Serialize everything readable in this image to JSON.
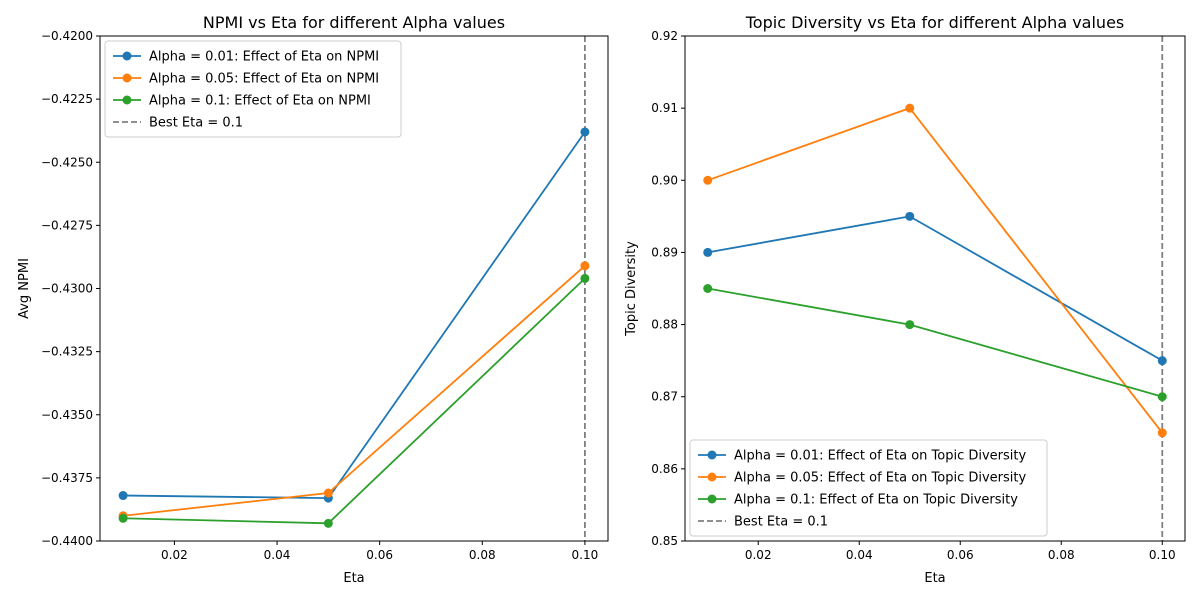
{
  "chart_data": [
    {
      "type": "line",
      "title": "NPMI vs Eta for different Alpha values",
      "xlabel": "Eta",
      "ylabel": "Avg NPMI",
      "x": [
        0.01,
        0.05,
        0.1
      ],
      "xlim": [
        0.0055,
        0.1045
      ],
      "ylim": [
        -0.44,
        -0.42
      ],
      "xticks": [
        "0.02",
        "0.04",
        "0.06",
        "0.08",
        "0.10"
      ],
      "xtick_values": [
        0.02,
        0.04,
        0.06,
        0.08,
        0.1
      ],
      "yticks": [
        "−0.4400",
        "−0.4375",
        "−0.4350",
        "−0.4325",
        "−0.4300",
        "−0.4275",
        "−0.4250",
        "−0.4225",
        "−0.4200"
      ],
      "ytick_values": [
        -0.44,
        -0.4375,
        -0.435,
        -0.4325,
        -0.43,
        -0.4275,
        -0.425,
        -0.4225,
        -0.42
      ],
      "series": [
        {
          "name": "Alpha = 0.01: Effect of Eta on NPMI",
          "color": "#1f77b4",
          "values": [
            -0.4382,
            -0.4383,
            -0.4238
          ]
        },
        {
          "name": "Alpha = 0.05: Effect of Eta on NPMI",
          "color": "#ff7f0e",
          "values": [
            -0.439,
            -0.4381,
            -0.4291
          ]
        },
        {
          "name": "Alpha = 0.1: Effect of Eta on NPMI",
          "color": "#2ca02c",
          "values": [
            -0.4391,
            -0.4393,
            -0.4296
          ]
        }
      ],
      "vline": {
        "x": 0.1,
        "label": "Best Eta = 0.1",
        "color": "#808080"
      },
      "legend_position": "upper-left",
      "grid": false
    },
    {
      "type": "line",
      "title": "Topic Diversity vs Eta for different Alpha values",
      "xlabel": "Eta",
      "ylabel": "Topic Diversity",
      "x": [
        0.01,
        0.05,
        0.1
      ],
      "xlim": [
        0.0055,
        0.1045
      ],
      "ylim": [
        0.85,
        0.92
      ],
      "xticks": [
        "0.02",
        "0.04",
        "0.06",
        "0.08",
        "0.10"
      ],
      "xtick_values": [
        0.02,
        0.04,
        0.06,
        0.08,
        0.1
      ],
      "yticks": [
        "0.85",
        "0.86",
        "0.87",
        "0.88",
        "0.89",
        "0.90",
        "0.91",
        "0.92"
      ],
      "ytick_values": [
        0.85,
        0.86,
        0.87,
        0.88,
        0.89,
        0.9,
        0.91,
        0.92
      ],
      "series": [
        {
          "name": "Alpha = 0.01: Effect of Eta on Topic Diversity",
          "color": "#1f77b4",
          "values": [
            0.89,
            0.895,
            0.875
          ]
        },
        {
          "name": "Alpha = 0.05: Effect of Eta on Topic Diversity",
          "color": "#ff7f0e",
          "values": [
            0.9,
            0.91,
            0.865
          ]
        },
        {
          "name": "Alpha = 0.1: Effect of Eta on Topic Diversity",
          "color": "#2ca02c",
          "values": [
            0.885,
            0.88,
            0.87
          ]
        }
      ],
      "vline": {
        "x": 0.1,
        "label": "Best Eta = 0.1",
        "color": "#808080"
      },
      "legend_position": "lower-left",
      "grid": false
    }
  ]
}
